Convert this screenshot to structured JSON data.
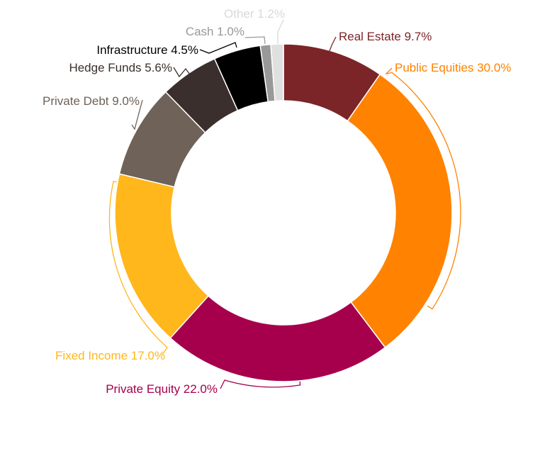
{
  "chart_data": {
    "type": "pie",
    "donut": true,
    "title": "",
    "slices": [
      {
        "label": "Real Estate",
        "value": 9.7,
        "display": "Real Estate 9.7%",
        "color": "#7B2528"
      },
      {
        "label": "Public Equities",
        "value": 30.0,
        "display": "Public Equities 30.0%",
        "color": "#FF8200"
      },
      {
        "label": "Private Equity",
        "value": 22.0,
        "display": "Private Equity 22.0%",
        "color": "#A6004C"
      },
      {
        "label": "Fixed Income",
        "value": 17.0,
        "display": "Fixed Income 17.0%",
        "color": "#FFB71B"
      },
      {
        "label": "Private Debt",
        "value": 9.0,
        "display": "Private Debt 9.0%",
        "color": "#6E6259"
      },
      {
        "label": "Hedge Funds",
        "value": 5.6,
        "display": "Hedge Funds 5.6%",
        "color": "#3A2F2C"
      },
      {
        "label": "Infrastructure",
        "value": 4.5,
        "display": "Infrastructure 4.5%",
        "color": "#000000"
      },
      {
        "label": "Cash",
        "value": 1.0,
        "display": "Cash 1.0%",
        "color": "#999999"
      },
      {
        "label": "Other",
        "value": 1.2,
        "display": "Other 1.2%",
        "color": "#E0E0E0"
      }
    ],
    "label_colors": [
      "#7B2528",
      "#FF8200",
      "#A6004C",
      "#FFB71B",
      "#6E6259",
      "#3A2F2C",
      "#000000",
      "#999999",
      "#D9D9D9"
    ],
    "start": "12 o'clock",
    "direction": "clockwise",
    "legend": "none"
  }
}
